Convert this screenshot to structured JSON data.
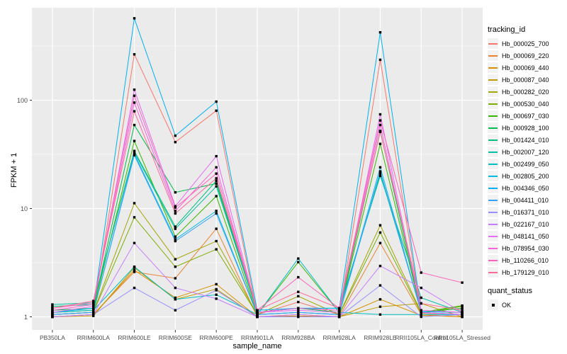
{
  "chart_data": {
    "type": "line",
    "title": "",
    "xlabel": "sample_name",
    "ylabel": "FPKM + 1",
    "y_scale": "log10",
    "y_ticks": [
      1,
      10,
      100
    ],
    "y_minor_ticks": [
      3.162,
      31.62,
      316.2
    ],
    "ylim": [
      0.76,
      713
    ],
    "grid": true,
    "panel_bg": "#EBEBEB",
    "grid_color": "#FFFFFF",
    "point_color": "#000000",
    "legend_position": "right",
    "legend_title": "tracking_id",
    "point_legend_title": "quant_status",
    "point_legend_label": "OK",
    "x_categories": [
      "PB350LA",
      "RRIM600LA",
      "RRIM600LE",
      "RRIM600SE",
      "RRIM600PE",
      "RRIM901LA",
      "RRIM928BA",
      "RRIM928LA",
      "RRIM928LE",
      "RRII105LA_Control",
      "RRII105LA_Stressed"
    ],
    "series": [
      {
        "name": "Hb_000025_700",
        "color": "#F8766D",
        "values": [
          1.05,
          1.1,
          265,
          41,
          80,
          1.05,
          1.37,
          1.05,
          236,
          1.08,
          1.05
        ]
      },
      {
        "name": "Hb_000069_220",
        "color": "#EA8331",
        "values": [
          1.0,
          1.05,
          2.6,
          2.27,
          6.5,
          1.0,
          1.05,
          1.0,
          4.8,
          1.05,
          1.0
        ]
      },
      {
        "name": "Hb_000069_440",
        "color": "#D89000",
        "values": [
          1.0,
          1.05,
          2.7,
          1.5,
          2.0,
          1.0,
          1.02,
          1.0,
          1.45,
          1.03,
          1.0
        ]
      },
      {
        "name": "Hb_000087_040",
        "color": "#C09B00",
        "values": [
          1.0,
          1.02,
          2.85,
          1.45,
          1.8,
          1.0,
          1.0,
          1.0,
          1.24,
          1.33,
          1.0
        ]
      },
      {
        "name": "Hb_000282_020",
        "color": "#A3A500",
        "values": [
          1.05,
          1.1,
          11.2,
          3.4,
          5.0,
          1.05,
          1.55,
          1.05,
          7.0,
          1.1,
          1.2
        ]
      },
      {
        "name": "Hb_000530_040",
        "color": "#7CAE00",
        "values": [
          1.05,
          1.1,
          8.3,
          2.9,
          4.2,
          1.05,
          1.1,
          1.05,
          6.0,
          1.08,
          1.25
        ]
      },
      {
        "name": "Hb_000697_030",
        "color": "#39B600",
        "values": [
          1.1,
          1.15,
          42,
          5.5,
          13,
          1.05,
          3.2,
          1.1,
          39.5,
          1.1,
          1.27
        ]
      },
      {
        "name": "Hb_000928_100",
        "color": "#00BB4E",
        "values": [
          1.15,
          1.2,
          59,
          14.1,
          17,
          1.1,
          1.2,
          1.1,
          52,
          1.1,
          1.2
        ]
      },
      {
        "name": "Hb_001424_010",
        "color": "#00BF7D",
        "values": [
          1.25,
          1.3,
          34,
          6.8,
          18,
          1.1,
          1.2,
          1.15,
          21,
          1.12,
          1.1
        ]
      },
      {
        "name": "Hb_002007_120",
        "color": "#00C1A3",
        "values": [
          1.3,
          1.35,
          33,
          6.5,
          16,
          1.1,
          1.2,
          1.2,
          20,
          1.5,
          1.1
        ]
      },
      {
        "name": "Hb_002499_050",
        "color": "#00BFC4",
        "values": [
          1.1,
          1.15,
          2.9,
          1.45,
          1.6,
          1.05,
          3.45,
          1.1,
          1.05,
          1.05,
          1.05
        ]
      },
      {
        "name": "Hb_002805_200",
        "color": "#00BAE0",
        "values": [
          1.05,
          1.1,
          32,
          5.2,
          9.5,
          1.05,
          1.1,
          1.05,
          24,
          1.1,
          1.05
        ]
      },
      {
        "name": "Hb_004346_050",
        "color": "#00B0F6",
        "values": [
          1.1,
          1.2,
          570,
          47,
          97,
          1.15,
          1.2,
          1.2,
          423,
          1.12,
          1.1
        ]
      },
      {
        "name": "Hb_004411_010",
        "color": "#35A2FF",
        "values": [
          1.05,
          1.1,
          31,
          5.0,
          9.0,
          1.05,
          1.1,
          1.05,
          22,
          1.1,
          1.05
        ]
      },
      {
        "name": "Hb_016371_010",
        "color": "#9590FF",
        "values": [
          1.0,
          1.05,
          1.85,
          1.15,
          1.76,
          1.0,
          1.0,
          1.0,
          1.95,
          1.0,
          1.05
        ]
      },
      {
        "name": "Hb_022167_010",
        "color": "#C77CFF",
        "values": [
          1.0,
          1.05,
          4.8,
          1.85,
          1.47,
          1.0,
          1.05,
          1.0,
          2.95,
          1.85,
          1.1
        ]
      },
      {
        "name": "Hb_048141_050",
        "color": "#E76BF3",
        "values": [
          1.1,
          1.25,
          125,
          10.5,
          30.4,
          1.1,
          1.15,
          1.1,
          74,
          1.1,
          1.05
        ]
      },
      {
        "name": "Hb_078954_030",
        "color": "#FA62DB",
        "values": [
          1.15,
          1.3,
          95,
          9.5,
          24,
          1.1,
          1.2,
          1.15,
          59,
          1.15,
          1.1
        ]
      },
      {
        "name": "Hb_110266_010",
        "color": "#FF62BC",
        "values": [
          1.2,
          1.35,
          110,
          10.2,
          21,
          1.15,
          2.32,
          1.2,
          65,
          2.56,
          2.07
        ]
      },
      {
        "name": "Hb_179129_010",
        "color": "#FF6A98",
        "values": [
          1.2,
          1.4,
          79,
          9.0,
          19,
          1.15,
          1.7,
          1.2,
          51,
          1.33,
          1.15
        ]
      }
    ]
  }
}
